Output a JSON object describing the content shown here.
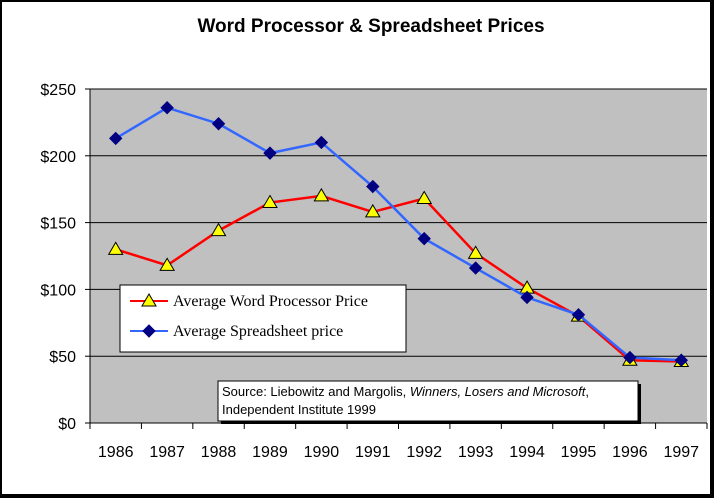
{
  "chart_data": {
    "type": "line",
    "title": "Word Processor & Spreadsheet Prices",
    "xlabel": "",
    "ylabel": "",
    "categories": [
      "1986",
      "1987",
      "1988",
      "1989",
      "1990",
      "1991",
      "1992",
      "1993",
      "1994",
      "1995",
      "1996",
      "1997"
    ],
    "y_ticks": [
      "$0",
      "$50",
      "$100",
      "$150",
      "$200",
      "$250"
    ],
    "ylim": [
      0,
      250
    ],
    "grid": true,
    "legend_position": "lower-left",
    "series": [
      {
        "name": "Average Word Processor Price",
        "color": "#ff0000",
        "marker": "triangle",
        "marker_color": "#ffff00",
        "values": [
          130,
          118,
          144,
          165,
          170,
          158,
          168,
          127,
          101,
          80,
          47,
          46
        ]
      },
      {
        "name": "Average Spreadsheet price",
        "color": "#3366ff",
        "marker": "diamond",
        "marker_color": "#000080",
        "values": [
          213,
          236,
          224,
          202,
          210,
          177,
          138,
          116,
          94,
          81,
          49,
          47
        ]
      }
    ],
    "annotation": {
      "prefix": "Source: Liebowitz and Margolis, ",
      "italic": "Winners, Losers and Microsoft",
      "suffix": ",",
      "line2": "Independent Institute 1999"
    },
    "colors": {
      "plot_background": "#c0c0c0",
      "gridline": "#000000"
    }
  }
}
